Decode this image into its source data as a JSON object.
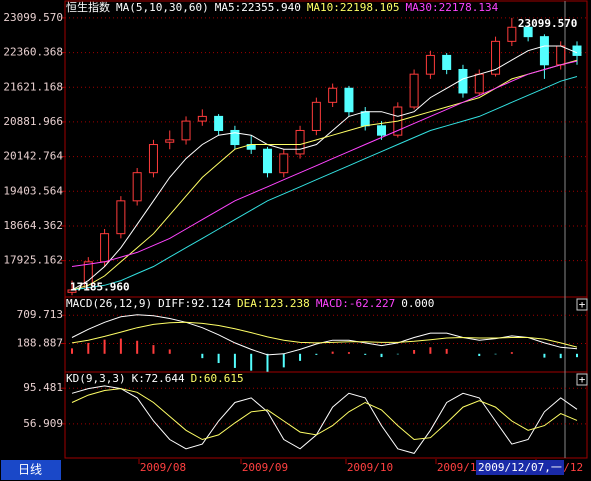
{
  "period_button": "日线",
  "x_labels": [
    "2009/08",
    "2009/09",
    "2009/10",
    "2009/11",
    "2009/12"
  ],
  "cursor_date": "2009/12/07,一",
  "chart_data": [
    {
      "type": "candlestick",
      "title": "恒生指数",
      "legend_title": "MA(5,10,30,60)",
      "up_color": "#ff3c3c",
      "down_color": "#54ffff",
      "ylim": [
        17150,
        23460
      ],
      "yticks": [
        {
          "value": 23099.57,
          "label": "23099.570"
        },
        22360.368,
        21621.168,
        20881.966,
        20142.764,
        19403.564,
        18664.362,
        17925.162
      ],
      "annotations": [
        {
          "value": 23099.57,
          "label": "23099.570"
        },
        {
          "value": 17185.96,
          "label": "17185.960"
        }
      ],
      "ohlc": [
        [
          17250,
          17500,
          17186,
          17300
        ],
        [
          17350,
          18000,
          17300,
          17900
        ],
        [
          17900,
          18600,
          17800,
          18500
        ],
        [
          18500,
          19300,
          18400,
          19200
        ],
        [
          19200,
          19900,
          19100,
          19800
        ],
        [
          19800,
          20500,
          19700,
          20400
        ],
        [
          20450,
          20700,
          20300,
          20500
        ],
        [
          20500,
          21000,
          20400,
          20900
        ],
        [
          20900,
          21150,
          20800,
          21000
        ],
        [
          21000,
          21050,
          20600,
          20700
        ],
        [
          20700,
          20800,
          20300,
          20400
        ],
        [
          20400,
          20600,
          20200,
          20300
        ],
        [
          20300,
          20350,
          19700,
          19800
        ],
        [
          19800,
          20300,
          19700,
          20200
        ],
        [
          20200,
          20800,
          20100,
          20700
        ],
        [
          20700,
          21400,
          20600,
          21300
        ],
        [
          21300,
          21700,
          21200,
          21600
        ],
        [
          21600,
          21650,
          21000,
          21100
        ],
        [
          21100,
          21200,
          20700,
          20800
        ],
        [
          20800,
          20900,
          20500,
          20600
        ],
        [
          20600,
          21300,
          20550,
          21200
        ],
        [
          21200,
          22000,
          21150,
          21900
        ],
        [
          21900,
          22400,
          21800,
          22300
        ],
        [
          22300,
          22350,
          21900,
          22000
        ],
        [
          22000,
          22100,
          21400,
          21500
        ],
        [
          21500,
          22000,
          21450,
          21900
        ],
        [
          21900,
          22700,
          21850,
          22600
        ],
        [
          22600,
          23099.57,
          22500,
          22900
        ],
        [
          22900,
          22950,
          22600,
          22700
        ],
        [
          22700,
          22750,
          21800,
          22100
        ],
        [
          22100,
          22600,
          22000,
          22500
        ],
        [
          22500,
          22600,
          22100,
          22300
        ]
      ],
      "series": [
        {
          "name": "MA5:22355.940",
          "color": "#ffffff",
          "values": [
            17300,
            17500,
            17800,
            18200,
            18700,
            19200,
            19700,
            20100,
            20400,
            20600,
            20650,
            20600,
            20400,
            20300,
            20300,
            20400,
            20700,
            21000,
            21100,
            21100,
            21000,
            21100,
            21400,
            21600,
            21800,
            21900,
            22000,
            22200,
            22400,
            22500,
            22500,
            22355.94
          ]
        },
        {
          "name": "MA10:22198.105",
          "color": "#ffff66",
          "values": [
            17300,
            17400,
            17600,
            17900,
            18200,
            18500,
            18900,
            19300,
            19700,
            20000,
            20300,
            20400,
            20400,
            20400,
            20400,
            20500,
            20600,
            20700,
            20800,
            20850,
            20900,
            21000,
            21100,
            21200,
            21300,
            21400,
            21600,
            21800,
            21900,
            22000,
            22100,
            22198.105
          ]
        },
        {
          "name": "MA30:22178.134",
          "color": "#ff44ff",
          "values": [
            17800,
            17850,
            17900,
            18000,
            18100,
            18250,
            18400,
            18600,
            18800,
            19000,
            19200,
            19350,
            19500,
            19650,
            19800,
            19950,
            20100,
            20250,
            20400,
            20550,
            20700,
            20850,
            21000,
            21150,
            21300,
            21450,
            21600,
            21750,
            21900,
            22000,
            22100,
            22178.134
          ]
        },
        {
          "color": "#33e0e0",
          "values": [
            17300,
            17350,
            17400,
            17500,
            17650,
            17800,
            18000,
            18200,
            18400,
            18600,
            18800,
            19000,
            19200,
            19350,
            19500,
            19650,
            19800,
            19950,
            20100,
            20250,
            20400,
            20550,
            20700,
            20800,
            20900,
            21000,
            21150,
            21300,
            21450,
            21600,
            21750,
            21850
          ]
        }
      ]
    },
    {
      "type": "macd",
      "title": "MACD(26,12,9)",
      "extra": "0.000",
      "ylim": [
        -335,
        1045
      ],
      "yticks": [
        709.713,
        188.887
      ],
      "bars": {
        "name": "MACD:-62.227",
        "color": "#ff44ff",
        "up_color": "#ff3c3c",
        "down_color": "#54ffff",
        "values": [
          100,
          200,
          260,
          280,
          240,
          160,
          80,
          0,
          -80,
          -170,
          -260,
          -310,
          -330,
          -250,
          -130,
          -20,
          40,
          30,
          -20,
          -60,
          -10,
          70,
          120,
          90,
          0,
          -40,
          -10,
          30,
          0,
          -70,
          -80,
          -62.227
        ]
      },
      "series": [
        {
          "name": "DIFF:92.124",
          "color": "#ffffff",
          "values": [
            300,
            450,
            580,
            680,
            720,
            700,
            650,
            580,
            480,
            350,
            200,
            80,
            -20,
            0,
            80,
            180,
            250,
            250,
            200,
            150,
            200,
            300,
            380,
            380,
            300,
            250,
            280,
            330,
            300,
            200,
            120,
            92.124
          ]
        },
        {
          "name": "DEA:123.238",
          "color": "#ffff66",
          "values": [
            200,
            250,
            320,
            400,
            480,
            540,
            570,
            580,
            560,
            520,
            460,
            390,
            310,
            250,
            210,
            200,
            210,
            220,
            220,
            210,
            210,
            230,
            260,
            290,
            300,
            290,
            290,
            300,
            300,
            270,
            200,
            123.238
          ]
        }
      ]
    },
    {
      "type": "line",
      "title": "KD(9,3,3)",
      "ylim": [
        20,
        113
      ],
      "yticks": [
        95.481,
        56.909
      ],
      "series": [
        {
          "name": "K:72.644",
          "color": "#ffffff",
          "values": [
            90,
            95,
            98,
            95,
            85,
            60,
            40,
            30,
            35,
            60,
            80,
            85,
            70,
            40,
            30,
            45,
            75,
            90,
            85,
            55,
            30,
            25,
            50,
            80,
            90,
            85,
            60,
            35,
            40,
            70,
            85,
            72.644
          ]
        },
        {
          "name": "D:60.615",
          "color": "#ffff66",
          "values": [
            80,
            88,
            93,
            95,
            91,
            80,
            65,
            50,
            40,
            45,
            58,
            70,
            72,
            60,
            48,
            45,
            55,
            70,
            80,
            72,
            55,
            40,
            42,
            58,
            75,
            82,
            75,
            60,
            50,
            55,
            68,
            60.615
          ]
        }
      ]
    }
  ]
}
